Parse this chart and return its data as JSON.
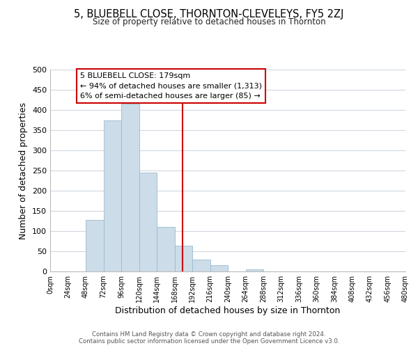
{
  "title": "5, BLUEBELL CLOSE, THORNTON-CLEVELEYS, FY5 2ZJ",
  "subtitle": "Size of property relative to detached houses in Thornton",
  "xlabel": "Distribution of detached houses by size in Thornton",
  "ylabel": "Number of detached properties",
  "bin_edges": [
    0,
    24,
    48,
    72,
    96,
    120,
    144,
    168,
    192,
    216,
    240,
    264,
    288,
    312,
    336,
    360,
    384,
    408,
    432,
    456,
    480
  ],
  "bar_heights": [
    0,
    0,
    128,
    375,
    415,
    245,
    110,
    63,
    30,
    15,
    0,
    5,
    0,
    0,
    0,
    0,
    0,
    0,
    0,
    0
  ],
  "bar_color": "#ccdce8",
  "bar_edge_color": "#99bbd0",
  "vline_x": 179,
  "vline_color": "#cc0000",
  "annotation_title": "5 BLUEBELL CLOSE: 179sqm",
  "annotation_line1": "← 94% of detached houses are smaller (1,313)",
  "annotation_line2": "6% of semi-detached houses are larger (85) →",
  "annotation_box_color": "#ffffff",
  "annotation_box_edge": "#cc0000",
  "xlim": [
    0,
    480
  ],
  "ylim": [
    0,
    500
  ],
  "yticks": [
    0,
    50,
    100,
    150,
    200,
    250,
    300,
    350,
    400,
    450,
    500
  ],
  "xtick_labels": [
    "0sqm",
    "24sqm",
    "48sqm",
    "72sqm",
    "96sqm",
    "120sqm",
    "144sqm",
    "168sqm",
    "192sqm",
    "216sqm",
    "240sqm",
    "264sqm",
    "288sqm",
    "312sqm",
    "336sqm",
    "360sqm",
    "384sqm",
    "408sqm",
    "432sqm",
    "456sqm",
    "480sqm"
  ],
  "xtick_positions": [
    0,
    24,
    48,
    72,
    96,
    120,
    144,
    168,
    192,
    216,
    240,
    264,
    288,
    312,
    336,
    360,
    384,
    408,
    432,
    456,
    480
  ],
  "footer1": "Contains HM Land Registry data © Crown copyright and database right 2024.",
  "footer2": "Contains public sector information licensed under the Open Government Licence v3.0.",
  "background_color": "#ffffff",
  "grid_color": "#d0d8e0"
}
